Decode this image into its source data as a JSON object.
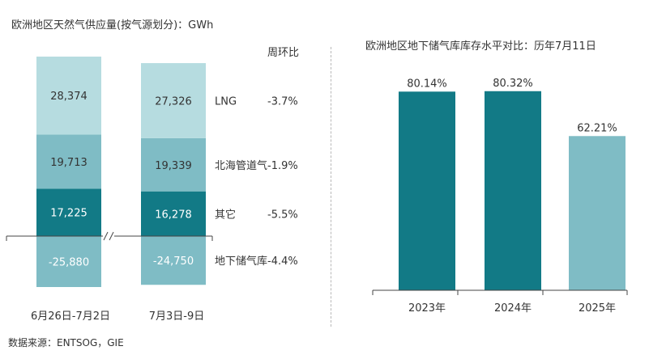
{
  "left_title": "欧洲地区天然气供应量(按气源划分)：GWh",
  "wow_header": "周环比",
  "source": "数据来源：ENTSOG，GIE",
  "right_title": "欧洲地区地下储气库库存水平对比：历年7月11日",
  "colors": {
    "lng": "#b6dce0",
    "north_sea": "#7fbcc5",
    "other": "#127a86",
    "storage": "#7fbcc5",
    "bar_dark": "#127a86",
    "bar_light": "#7fbcc5"
  },
  "chart_data": [
    {
      "type": "bar",
      "stacked": true,
      "title": "欧洲地区天然气供应量(按气源划分)：GWh",
      "categories": [
        "6月26日-7月2日",
        "7月3日-9日"
      ],
      "series": [
        {
          "name": "LNG",
          "values": [
            28374,
            27326
          ],
          "labels": [
            "28,374",
            "27,326"
          ],
          "wow": "-3.7%"
        },
        {
          "name": "北海管道气",
          "values": [
            19713,
            19339
          ],
          "labels": [
            "19,713",
            "19,339"
          ],
          "wow": "-1.9%"
        },
        {
          "name": "其它",
          "values": [
            17225,
            16278
          ],
          "labels": [
            "17,225",
            "16,278"
          ],
          "wow": "-5.5%"
        },
        {
          "name": "地下储气库",
          "values": [
            -25880,
            -24750
          ],
          "labels": [
            "-25,880",
            "-24,750"
          ],
          "wow": "-4.4%"
        }
      ],
      "axis_break": true
    },
    {
      "type": "bar",
      "title": "欧洲地区地下储气库库存水平对比：历年7月11日",
      "categories": [
        "2023年",
        "2024年",
        "2025年"
      ],
      "values": [
        80.14,
        80.32,
        62.21
      ],
      "labels": [
        "80.14%",
        "80.32%",
        "62.21%"
      ],
      "ylim": [
        0,
        100
      ]
    }
  ]
}
